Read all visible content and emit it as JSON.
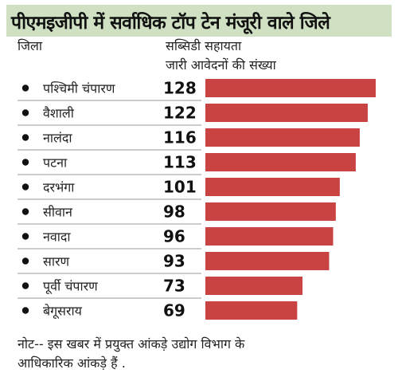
{
  "title": "पीएमइजीपी में सर्वाधिक टॉप टेन मंजूरी वाले जिले",
  "header": {
    "district": "जिला",
    "value_line1": "सब्सिडी सहायता",
    "value_line2": "जारी आवेदनों की संख्या"
  },
  "note": {
    "line1": "नोट-- इस खबर में प्रयुक्त आंकड़े उद्योग विभाग के",
    "line2": "आधिकारिक आंकड़े हैं ."
  },
  "colors": {
    "bar": "#c94343",
    "title_bg": "#cfe0c3"
  },
  "chart_data": {
    "type": "bar",
    "orientation": "horizontal",
    "categories": [
      "पश्चिमी चंपारण",
      "वैशाली",
      "नालंदा",
      "पटना",
      "दरभंगा",
      "सीवान",
      "नवादा",
      "सारण",
      "पूर्वी चंपारण",
      "बेगूसराय"
    ],
    "values": [
      128,
      122,
      116,
      113,
      101,
      98,
      96,
      93,
      73,
      69
    ],
    "value_labels": [
      "128",
      "122",
      "116",
      "113",
      "101",
      "98",
      "96",
      "93",
      "73",
      "69"
    ],
    "xlim": [
      0,
      128
    ],
    "grid": false,
    "legend": "none"
  }
}
